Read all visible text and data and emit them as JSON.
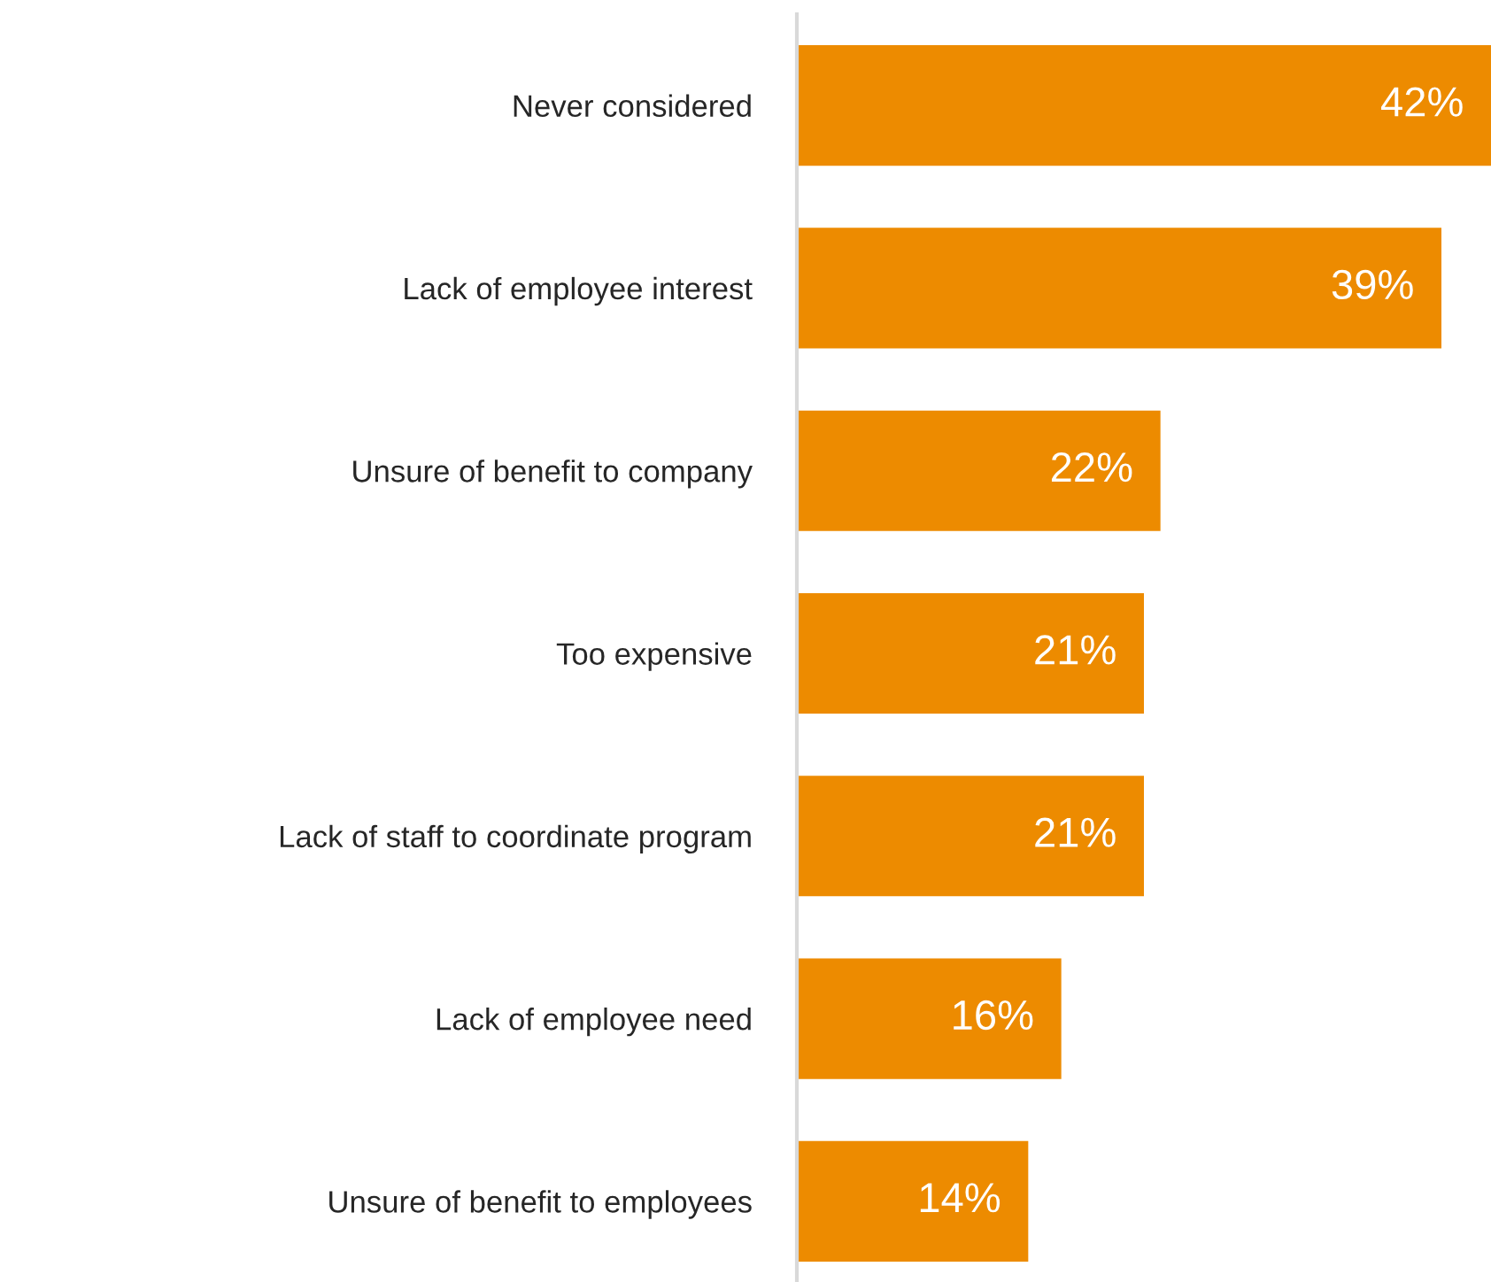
{
  "chart_data": {
    "type": "bar",
    "orientation": "horizontal",
    "categories": [
      "Never considered",
      "Lack of employee interest",
      "Unsure of benefit to company",
      "Too expensive",
      "Lack of staff to coordinate program",
      "Lack of employee need",
      "Unsure of benefit to employees"
    ],
    "values": [
      42,
      39,
      22,
      21,
      21,
      16,
      14
    ],
    "value_labels": [
      "42%",
      "39%",
      "22%",
      "21%",
      "21%",
      "16%",
      "14%"
    ],
    "color": "#ed8b00",
    "grid": false,
    "legend": false,
    "tick_labels": "y"
  }
}
